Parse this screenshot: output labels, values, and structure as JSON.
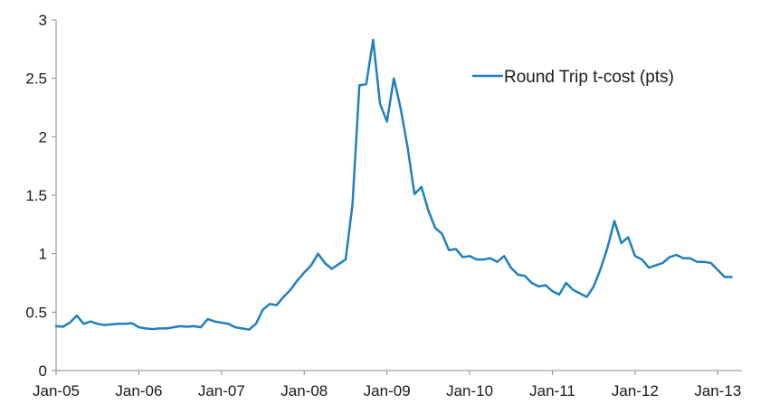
{
  "chart_data": {
    "type": "line",
    "title": "",
    "xlabel": "",
    "ylabel": "",
    "ylim": [
      0,
      3
    ],
    "y_ticks": [
      0,
      0.5,
      1,
      1.5,
      2,
      2.5,
      3
    ],
    "y_tick_labels": [
      "0",
      "0.5",
      "1",
      "1.5",
      "2",
      "2.5",
      "3"
    ],
    "x_ticks": [
      "2005-01",
      "2006-01",
      "2007-01",
      "2008-01",
      "2009-01",
      "2010-01",
      "2011-01",
      "2012-01",
      "2013-01"
    ],
    "x_tick_labels": [
      "Jan-05",
      "Jan-06",
      "Jan-07",
      "Jan-08",
      "Jan-09",
      "Jan-10",
      "Jan-11",
      "Jan-12",
      "Jan-13"
    ],
    "x_range": [
      "2005-01",
      "2013-04"
    ],
    "grid": false,
    "legend": {
      "placement": "top-right"
    },
    "colors": {
      "series": "#1f7fc0",
      "axis": "#8c8c8c"
    },
    "series": [
      {
        "name": "Round Trip t-cost (pts)",
        "points": [
          [
            "2005-01",
            0.38
          ],
          [
            "2005-02",
            0.375
          ],
          [
            "2005-03",
            0.41
          ],
          [
            "2005-04",
            0.47
          ],
          [
            "2005-05",
            0.4
          ],
          [
            "2005-06",
            0.42
          ],
          [
            "2005-07",
            0.4
          ],
          [
            "2005-08",
            0.39
          ],
          [
            "2005-09",
            0.395
          ],
          [
            "2005-10",
            0.4
          ],
          [
            "2005-11",
            0.4
          ],
          [
            "2005-12",
            0.405
          ],
          [
            "2006-01",
            0.37
          ],
          [
            "2006-02",
            0.36
          ],
          [
            "2006-03",
            0.355
          ],
          [
            "2006-04",
            0.36
          ],
          [
            "2006-05",
            0.36
          ],
          [
            "2006-06",
            0.37
          ],
          [
            "2006-07",
            0.38
          ],
          [
            "2006-08",
            0.375
          ],
          [
            "2006-09",
            0.38
          ],
          [
            "2006-10",
            0.37
          ],
          [
            "2006-11",
            0.44
          ],
          [
            "2006-12",
            0.42
          ],
          [
            "2007-01",
            0.41
          ],
          [
            "2007-02",
            0.4
          ],
          [
            "2007-03",
            0.37
          ],
          [
            "2007-04",
            0.36
          ],
          [
            "2007-05",
            0.35
          ],
          [
            "2007-06",
            0.4
          ],
          [
            "2007-07",
            0.52
          ],
          [
            "2007-08",
            0.57
          ],
          [
            "2007-09",
            0.56
          ],
          [
            "2007-10",
            0.63
          ],
          [
            "2007-11",
            0.69
          ],
          [
            "2007-12",
            0.77
          ],
          [
            "2008-01",
            0.84
          ],
          [
            "2008-02",
            0.9
          ],
          [
            "2008-03",
            1.0
          ],
          [
            "2008-04",
            0.92
          ],
          [
            "2008-05",
            0.87
          ],
          [
            "2008-06",
            0.91
          ],
          [
            "2008-07",
            0.95
          ],
          [
            "2008-08",
            1.42
          ],
          [
            "2008-09",
            2.44
          ],
          [
            "2008-10",
            2.45
          ],
          [
            "2008-11",
            2.83
          ],
          [
            "2008-12",
            2.28
          ],
          [
            "2009-01",
            2.13
          ],
          [
            "2009-02",
            2.5
          ],
          [
            "2009-03",
            2.24
          ],
          [
            "2009-04",
            1.91
          ],
          [
            "2009-05",
            1.51
          ],
          [
            "2009-06",
            1.57
          ],
          [
            "2009-07",
            1.37
          ],
          [
            "2009-08",
            1.22
          ],
          [
            "2009-09",
            1.17
          ],
          [
            "2009-10",
            1.03
          ],
          [
            "2009-11",
            1.04
          ],
          [
            "2009-12",
            0.97
          ],
          [
            "2010-01",
            0.98
          ],
          [
            "2010-02",
            0.95
          ],
          [
            "2010-03",
            0.95
          ],
          [
            "2010-04",
            0.96
          ],
          [
            "2010-05",
            0.93
          ],
          [
            "2010-06",
            0.98
          ],
          [
            "2010-07",
            0.88
          ],
          [
            "2010-08",
            0.82
          ],
          [
            "2010-09",
            0.81
          ],
          [
            "2010-10",
            0.75
          ],
          [
            "2010-11",
            0.72
          ],
          [
            "2010-12",
            0.73
          ],
          [
            "2011-01",
            0.68
          ],
          [
            "2011-02",
            0.65
          ],
          [
            "2011-03",
            0.75
          ],
          [
            "2011-04",
            0.69
          ],
          [
            "2011-05",
            0.66
          ],
          [
            "2011-06",
            0.63
          ],
          [
            "2011-07",
            0.72
          ],
          [
            "2011-08",
            0.87
          ],
          [
            "2011-09",
            1.05
          ],
          [
            "2011-10",
            1.28
          ],
          [
            "2011-11",
            1.09
          ],
          [
            "2011-12",
            1.14
          ],
          [
            "2012-01",
            0.98
          ],
          [
            "2012-02",
            0.95
          ],
          [
            "2012-03",
            0.88
          ],
          [
            "2012-04",
            0.9
          ],
          [
            "2012-05",
            0.92
          ],
          [
            "2012-06",
            0.97
          ],
          [
            "2012-07",
            0.99
          ],
          [
            "2012-08",
            0.96
          ],
          [
            "2012-09",
            0.96
          ],
          [
            "2012-10",
            0.93
          ],
          [
            "2012-11",
            0.93
          ],
          [
            "2012-12",
            0.92
          ],
          [
            "2013-01",
            0.86
          ],
          [
            "2013-02",
            0.8
          ],
          [
            "2013-03",
            0.8
          ]
        ]
      }
    ]
  }
}
